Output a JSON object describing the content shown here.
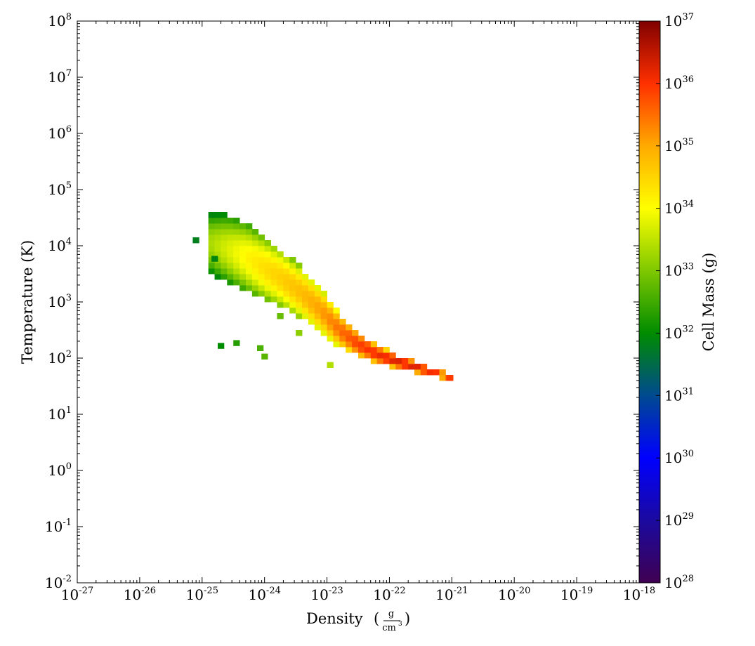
{
  "chart_data": {
    "type": "heatmap",
    "xlabel": "Density",
    "xlabel_unit": {
      "numerator": "g",
      "denominator": "cm",
      "denominator_exp": "3"
    },
    "ylabel": "Temperature  (K)",
    "colorbar_label": "Cell Mass  (g)",
    "x_scale": "log",
    "y_scale": "log",
    "xlim_log10": [
      -27,
      -18
    ],
    "ylim_log10": [
      -2,
      8
    ],
    "color_range_log10": [
      28,
      37
    ],
    "colormap": [
      "#3f0050",
      "#1b0aa0",
      "#0000ff",
      "#004a90",
      "#008c00",
      "#7fc800",
      "#ffff00",
      "#ffaa00",
      "#ff3000",
      "#800000"
    ],
    "x_ticks": [
      {
        "base": "10",
        "exp": "-27"
      },
      {
        "base": "10",
        "exp": "-26"
      },
      {
        "base": "10",
        "exp": "-25"
      },
      {
        "base": "10",
        "exp": "-24"
      },
      {
        "base": "10",
        "exp": "-23"
      },
      {
        "base": "10",
        "exp": "-22"
      },
      {
        "base": "10",
        "exp": "-21"
      },
      {
        "base": "10",
        "exp": "-20"
      },
      {
        "base": "10",
        "exp": "-19"
      },
      {
        "base": "10",
        "exp": "-18"
      }
    ],
    "y_ticks": [
      {
        "base": "10",
        "exp": "-2"
      },
      {
        "base": "10",
        "exp": "-1"
      },
      {
        "base": "10",
        "exp": "0"
      },
      {
        "base": "10",
        "exp": "1"
      },
      {
        "base": "10",
        "exp": "2"
      },
      {
        "base": "10",
        "exp": "3"
      },
      {
        "base": "10",
        "exp": "4"
      },
      {
        "base": "10",
        "exp": "5"
      },
      {
        "base": "10",
        "exp": "6"
      },
      {
        "base": "10",
        "exp": "7"
      },
      {
        "base": "10",
        "exp": "8"
      }
    ],
    "cbar_ticks": [
      {
        "base": "10",
        "exp": "28"
      },
      {
        "base": "10",
        "exp": "29"
      },
      {
        "base": "10",
        "exp": "30"
      },
      {
        "base": "10",
        "exp": "31"
      },
      {
        "base": "10",
        "exp": "32"
      },
      {
        "base": "10",
        "exp": "33"
      },
      {
        "base": "10",
        "exp": "34"
      },
      {
        "base": "10",
        "exp": "35"
      },
      {
        "base": "10",
        "exp": "36"
      },
      {
        "base": "10",
        "exp": "37"
      }
    ],
    "ridge": {
      "description": "logT vs logRho ridge line with core log10 mass (g)",
      "points": [
        {
          "x": -24.9,
          "y": 4.05,
          "m": 33.3,
          "w": 0.55
        },
        {
          "x": -24.6,
          "y": 3.95,
          "m": 33.7,
          "w": 0.6
        },
        {
          "x": -24.3,
          "y": 3.8,
          "m": 34.1,
          "w": 0.6
        },
        {
          "x": -24.0,
          "y": 3.6,
          "m": 34.4,
          "w": 0.55
        },
        {
          "x": -23.7,
          "y": 3.4,
          "m": 34.6,
          "w": 0.5
        },
        {
          "x": -23.4,
          "y": 3.15,
          "m": 34.8,
          "w": 0.45
        },
        {
          "x": -23.1,
          "y": 2.85,
          "m": 35.1,
          "w": 0.4
        },
        {
          "x": -22.8,
          "y": 2.5,
          "m": 35.5,
          "w": 0.3
        },
        {
          "x": -22.5,
          "y": 2.25,
          "m": 35.9,
          "w": 0.22
        },
        {
          "x": -22.2,
          "y": 2.07,
          "m": 36.1,
          "w": 0.16
        },
        {
          "x": -21.9,
          "y": 1.95,
          "m": 36.3,
          "w": 0.12
        },
        {
          "x": -21.6,
          "y": 1.85,
          "m": 36.3,
          "w": 0.1
        },
        {
          "x": -21.3,
          "y": 1.75,
          "m": 36.1,
          "w": 0.08
        },
        {
          "x": -21.05,
          "y": 1.67,
          "m": 35.9,
          "w": 0.06
        }
      ]
    },
    "outlier_cells": [
      {
        "x": -24.75,
        "y": 2.17,
        "m": 32.0
      },
      {
        "x": -24.5,
        "y": 2.22,
        "m": 32.3
      },
      {
        "x": -24.12,
        "y": 2.13,
        "m": 32.6
      },
      {
        "x": -24.05,
        "y": 1.98,
        "m": 32.7
      },
      {
        "x": -23.0,
        "y": 1.83,
        "m": 33.4
      },
      {
        "x": -23.8,
        "y": 2.7,
        "m": 32.8
      },
      {
        "x": -23.5,
        "y": 2.4,
        "m": 33.1
      },
      {
        "x": -21.08,
        "y": 1.6,
        "m": 35.9
      },
      {
        "x": -25.15,
        "y": 4.05,
        "m": 31.8
      },
      {
        "x": -24.85,
        "y": 3.72,
        "m": 31.9
      }
    ]
  }
}
